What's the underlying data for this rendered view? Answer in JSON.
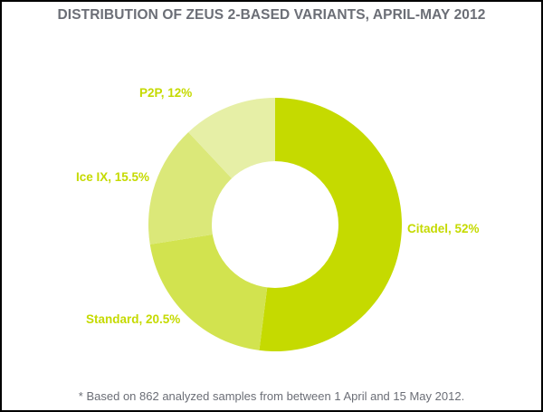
{
  "title": "DISTRIBUTION OF ZEUS 2-BASED VARIANTS, APRIL-MAY 2012",
  "footnote": "* Based on 862 analyzed samples from between 1 April and 15 May 2012.",
  "colors": {
    "citadel": "#c5da00",
    "standard": "#d2e34f",
    "ice_ix": "#dbe879",
    "p2p": "#e6efa6",
    "label": "#c5da00",
    "text_gray": "#6b6e76"
  },
  "labels": {
    "citadel": "Citadel, 52%",
    "standard": "Standard, 20.5%",
    "ice_ix": "Ice IX, 15.5%",
    "p2p": "P2P, 12%"
  },
  "chart_data": {
    "type": "pie",
    "donut": true,
    "title": "DISTRIBUTION OF ZEUS 2-BASED VARIANTS, APRIL-MAY 2012",
    "categories": [
      "Citadel",
      "Standard",
      "Ice IX",
      "P2P"
    ],
    "values": [
      52,
      20.5,
      15.5,
      12
    ],
    "unit": "%",
    "start_angle": "12 o'clock, clockwise",
    "annotations": [
      "* Based on 862 analyzed samples from between 1 April and 15 May 2012."
    ],
    "legend": "none (inline labels)"
  }
}
